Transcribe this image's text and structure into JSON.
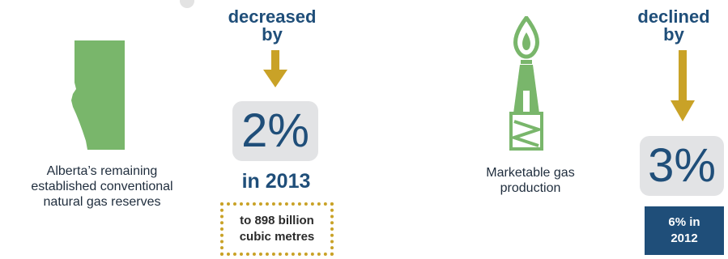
{
  "colors": {
    "accent_blue": "#1f4e79",
    "gold": "#c9a227",
    "green": "#79b66b",
    "grey_box": "#e2e3e5"
  },
  "left": {
    "region_icon": "alberta-map-icon",
    "label_lines": [
      "Alberta’s remaining",
      "established conventional",
      "natural gas reserves"
    ],
    "change_lines": [
      "decreased",
      "by"
    ],
    "arrow_icon": "down-arrow-icon",
    "percent": "2%",
    "year": "in 2013",
    "detail_lines": [
      "to 898 billion",
      "cubic metres"
    ]
  },
  "right": {
    "facility_icon": "gas-flare-tower-icon",
    "label_lines": [
      "Marketable gas",
      "production"
    ],
    "change_lines": [
      "declined",
      "by"
    ],
    "arrow_icon": "down-arrow-icon",
    "percent": "3%",
    "prior_lines": [
      "6% in",
      "2012"
    ]
  }
}
